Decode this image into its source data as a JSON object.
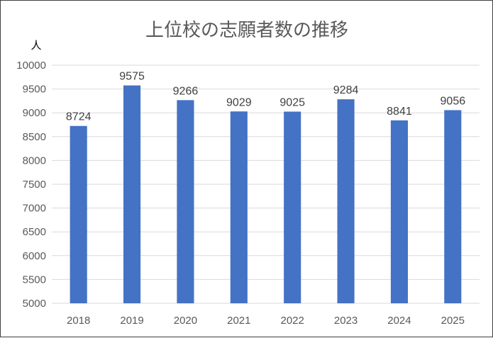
{
  "chart_data": {
    "type": "bar",
    "title": "上位校の志願者数の推移",
    "ylabel": "人",
    "xlabel": "",
    "categories": [
      "2018",
      "2019",
      "2020",
      "2021",
      "2022",
      "2023",
      "2024",
      "2025"
    ],
    "values": [
      8724,
      9575,
      9266,
      9029,
      9025,
      9284,
      8841,
      9056
    ],
    "ylim": [
      5000,
      10000
    ],
    "yticks": [
      5000,
      5500,
      6000,
      6500,
      7000,
      7500,
      8000,
      8500,
      9000,
      9500,
      10000
    ],
    "grid": true,
    "legend": "none",
    "bar_color": "#4472c4"
  }
}
